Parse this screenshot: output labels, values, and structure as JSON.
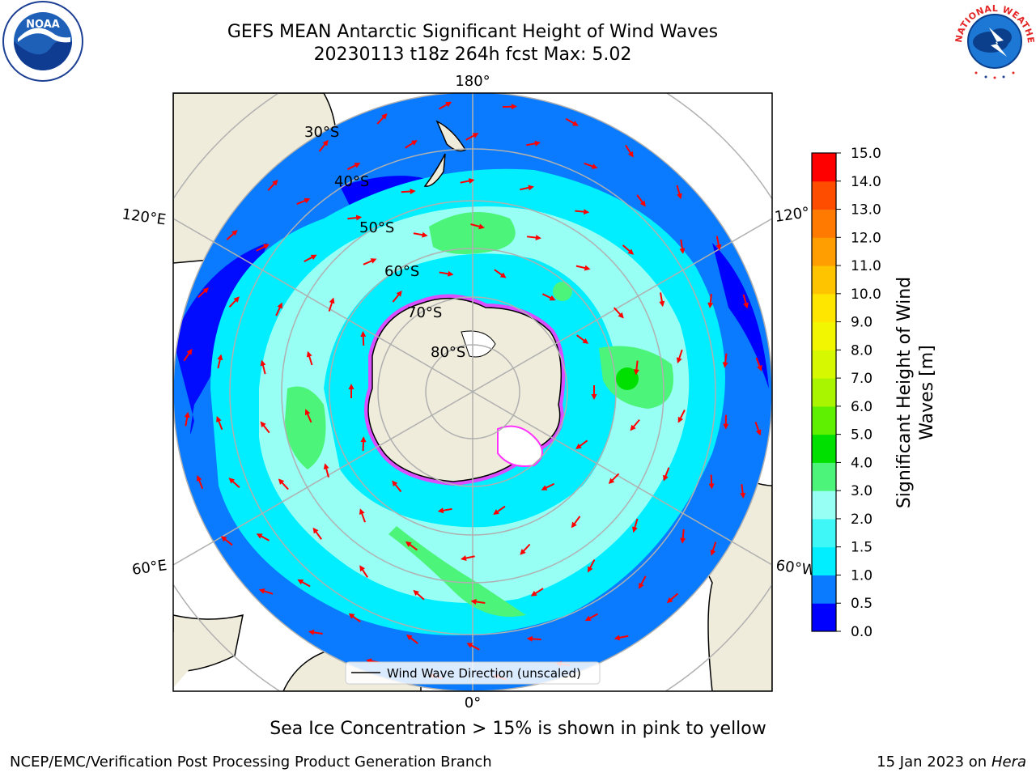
{
  "header": {
    "title_line1": "GEFS MEAN Antarctic Significant Height of Wind Waves",
    "title_line2": "20230113 t18z 264h fcst   Max: 5.02"
  },
  "logos": {
    "left": {
      "icon": "noaa-logo",
      "text": "NOAA"
    },
    "right": {
      "icon": "national-weather-service-logo",
      "text": "NATIONAL WEATHER SERVICE"
    }
  },
  "map": {
    "projection": "south-polar-stereographic",
    "longitude_labels": {
      "top": "180°",
      "bottom": "0°",
      "upper_left": "120°E",
      "upper_right": "120°",
      "lower_left": "60°E",
      "lower_right": "60°W"
    },
    "latitude_labels": [
      "30°S",
      "40°S",
      "50°S",
      "60°S",
      "70°S",
      "80°S"
    ],
    "legend": {
      "label": "Wind Wave Direction (unscaled)"
    },
    "colors": {
      "ocean_low": "#0000ff",
      "ocean_mid": "#0a7bff",
      "ocean_cyan": "#00eeff",
      "ocean_light": "#98fff4",
      "ocean_green": "#4cf57a",
      "land": "#efecdb",
      "arrow": "#ff0000",
      "sea_ice_edge": "#ff33ff",
      "grid": "#b0b0b0"
    }
  },
  "colorbar": {
    "label": "Significant Height of Wind Waves [m]",
    "label_line1": "Significant Height of Wind",
    "label_line2": "Waves [m]",
    "ticks": [
      "0.0",
      "0.5",
      "1.0",
      "1.5",
      "2.0",
      "3.0",
      "4.0",
      "5.0",
      "6.0",
      "7.0",
      "8.0",
      "9.0",
      "10.0",
      "11.0",
      "12.0",
      "13.0",
      "14.0",
      "15.0"
    ],
    "colors": [
      "#0000ff",
      "#0a7bff",
      "#00eeff",
      "#3ff7f7",
      "#98fff4",
      "#4cf57a",
      "#00e000",
      "#5ef000",
      "#a9f500",
      "#d6f800",
      "#f2f600",
      "#ffe600",
      "#ffc400",
      "#ff9e00",
      "#ff7a00",
      "#ff4d00",
      "#ff0000"
    ]
  },
  "captions": {
    "sea_ice_note": "Sea Ice Concentration > 15% is shown in pink to yellow",
    "footer_left": "NCEP/EMC/Verification Post Processing Product Generation Branch",
    "footer_right_date": "15 Jan 2023 on ",
    "footer_right_host": "Hera"
  }
}
